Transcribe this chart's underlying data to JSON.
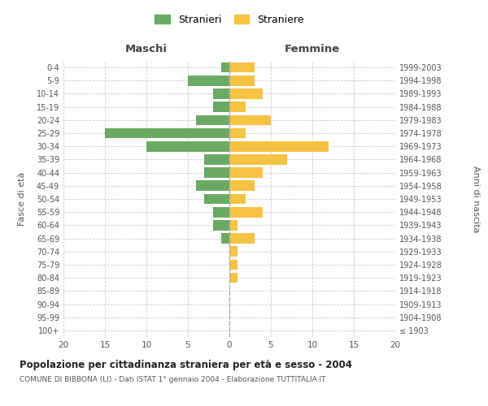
{
  "age_groups": [
    "100+",
    "95-99",
    "90-94",
    "85-89",
    "80-84",
    "75-79",
    "70-74",
    "65-69",
    "60-64",
    "55-59",
    "50-54",
    "45-49",
    "40-44",
    "35-39",
    "30-34",
    "25-29",
    "20-24",
    "15-19",
    "10-14",
    "5-9",
    "0-4"
  ],
  "birth_years": [
    "≤ 1903",
    "1904-1908",
    "1909-1913",
    "1914-1918",
    "1919-1923",
    "1924-1928",
    "1929-1933",
    "1934-1938",
    "1939-1943",
    "1944-1948",
    "1949-1953",
    "1954-1958",
    "1959-1963",
    "1964-1968",
    "1969-1973",
    "1974-1978",
    "1979-1983",
    "1984-1988",
    "1989-1993",
    "1994-1998",
    "1999-2003"
  ],
  "maschi": [
    0,
    0,
    0,
    0,
    0,
    0,
    0,
    1,
    2,
    2,
    3,
    4,
    3,
    3,
    10,
    15,
    4,
    2,
    2,
    5,
    1
  ],
  "femmine": [
    0,
    0,
    0,
    0,
    1,
    1,
    1,
    3,
    1,
    4,
    2,
    3,
    4,
    7,
    12,
    2,
    5,
    2,
    4,
    3,
    3
  ],
  "color_maschi": "#6aaa64",
  "color_femmine": "#f5c242",
  "title": "Popolazione per cittadinanza straniera per età e sesso - 2004",
  "subtitle": "COMUNE DI BIBBONA (LI) - Dati ISTAT 1° gennaio 2004 - Elaborazione TUTTITALIA.IT",
  "xlabel_maschi": "Maschi",
  "xlabel_femmine": "Femmine",
  "ylabel_left": "Fasce di età",
  "ylabel_right": "Anni di nascita",
  "legend_maschi": "Stranieri",
  "legend_femmine": "Straniere",
  "xlim": 20,
  "background_color": "#ffffff",
  "grid_color": "#cccccc"
}
